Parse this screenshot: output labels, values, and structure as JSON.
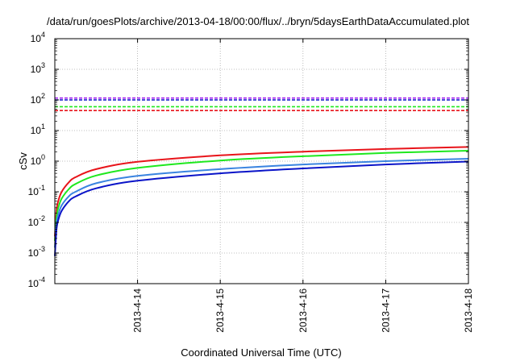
{
  "chart_data": {
    "type": "line",
    "title": "/data/run/goesPlots/archive/2013-04-18/00:00/flux/../bryn/5daysEarthDataAccumulated.plot",
    "xlabel": "Coordinated Universal Time (UTC)",
    "ylabel": "cSv",
    "y_scale": "log",
    "xlim": [
      "2013-04-13 00:00",
      "2013-04-18 00:00"
    ],
    "ylim": [
      0.0001,
      10000
    ],
    "x_ticks": [
      "2013-4-14",
      "2013-4-15",
      "2013-4-16",
      "2013-4-17",
      "2013-4-18"
    ],
    "y_ticks": [
      {
        "base": "10",
        "exp": "-4",
        "value": 0.0001
      },
      {
        "base": "10",
        "exp": "-3",
        "value": 0.001
      },
      {
        "base": "10",
        "exp": "-2",
        "value": 0.01
      },
      {
        "base": "10",
        "exp": "-1",
        "value": 0.1
      },
      {
        "base": "10",
        "exp": "0",
        "value": 1
      },
      {
        "base": "10",
        "exp": "1",
        "value": 10
      },
      {
        "base": "10",
        "exp": "2",
        "value": 100
      },
      {
        "base": "10",
        "exp": "3",
        "value": 1000
      },
      {
        "base": "10",
        "exp": "4",
        "value": 10000
      }
    ],
    "grid": true,
    "legend": "none",
    "series": [
      {
        "color": "#e8141a",
        "style": "solid",
        "x": [
          "2013-04-13 00:00",
          "2013-04-13 00:30",
          "2013-04-13 01:00",
          "2013-04-13 02:00",
          "2013-04-13 04:00",
          "2013-04-13 06:00",
          "2013-04-13 12:00",
          "2013-04-14 00:00",
          "2013-04-15 00:00",
          "2013-04-16 00:00",
          "2013-04-17 00:00",
          "2013-04-18 00:00"
        ],
        "y": [
          0.0035,
          0.025,
          0.05,
          0.1,
          0.2,
          0.3,
          0.55,
          0.95,
          1.55,
          2.05,
          2.5,
          2.9
        ]
      },
      {
        "color": "#1ee81e",
        "style": "solid",
        "x": [
          "2013-04-13 00:00",
          "2013-04-13 00:30",
          "2013-04-13 01:00",
          "2013-04-13 02:00",
          "2013-04-13 04:00",
          "2013-04-13 06:00",
          "2013-04-13 12:00",
          "2013-04-14 00:00",
          "2013-04-15 00:00",
          "2013-04-16 00:00",
          "2013-04-17 00:00",
          "2013-04-18 00:00"
        ],
        "y": [
          0.0025,
          0.015,
          0.03,
          0.06,
          0.12,
          0.18,
          0.34,
          0.6,
          1.05,
          1.45,
          1.85,
          2.2
        ]
      },
      {
        "color": "#3a84e0",
        "style": "solid",
        "x": [
          "2013-04-13 00:00",
          "2013-04-13 00:30",
          "2013-04-13 01:00",
          "2013-04-13 02:00",
          "2013-04-13 04:00",
          "2013-04-13 06:00",
          "2013-04-13 12:00",
          "2013-04-14 00:00",
          "2013-04-15 00:00",
          "2013-04-16 00:00",
          "2013-04-17 00:00",
          "2013-04-18 00:00"
        ],
        "y": [
          0.0015,
          0.009,
          0.018,
          0.036,
          0.07,
          0.1,
          0.19,
          0.33,
          0.55,
          0.78,
          1.0,
          1.2
        ]
      },
      {
        "color": "#0a14c8",
        "style": "solid",
        "x": [
          "2013-04-13 00:00",
          "2013-04-13 00:30",
          "2013-04-13 01:00",
          "2013-04-13 02:00",
          "2013-04-13 04:00",
          "2013-04-13 06:00",
          "2013-04-13 12:00",
          "2013-04-14 00:00",
          "2013-04-15 00:00",
          "2013-04-16 00:00",
          "2013-04-17 00:00",
          "2013-04-18 00:00"
        ],
        "y": [
          0.0008,
          0.006,
          0.012,
          0.024,
          0.048,
          0.07,
          0.13,
          0.23,
          0.4,
          0.58,
          0.78,
          0.97
        ]
      },
      {
        "color": "#a020f0",
        "style": "dashed",
        "x": [
          "2013-04-13 00:00",
          "2013-04-18 00:00"
        ],
        "y": [
          115,
          115
        ]
      },
      {
        "color": "#0a14c8",
        "style": "dashed",
        "x": [
          "2013-04-13 00:00",
          "2013-04-18 00:00"
        ],
        "y": [
          100,
          100
        ]
      },
      {
        "color": "#1ee81e",
        "style": "dashed",
        "x": [
          "2013-04-13 00:00",
          "2013-04-18 00:00"
        ],
        "y": [
          60,
          60
        ]
      },
      {
        "color": "#e8141a",
        "style": "dashed",
        "x": [
          "2013-04-13 00:00",
          "2013-04-18 00:00"
        ],
        "y": [
          45,
          45
        ]
      }
    ]
  }
}
